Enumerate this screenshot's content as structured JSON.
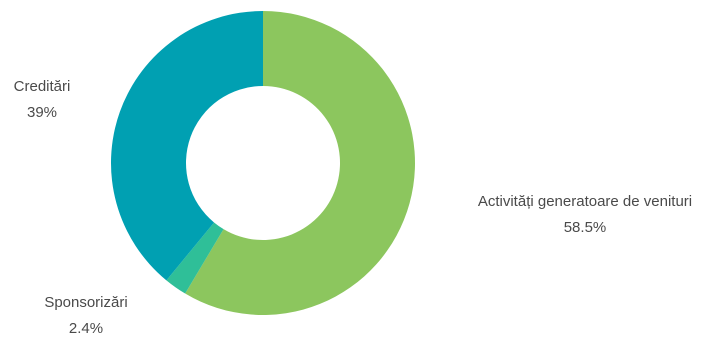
{
  "chart_data": {
    "type": "pie",
    "donut": true,
    "title": "",
    "series": [
      {
        "name": "",
        "slices": [
          {
            "label": "Activități generatoare de venituri",
            "value": 58.5,
            "value_label": "58.5%",
            "color": "#8cc65e"
          },
          {
            "label": "Sponsorizări",
            "value": 2.4,
            "value_label": "2.4%",
            "color": "#2fbf98"
          },
          {
            "label": "Creditări",
            "value": 39,
            "value_label": "39%",
            "color": "#00a0b2"
          }
        ]
      }
    ],
    "legend": "none"
  }
}
